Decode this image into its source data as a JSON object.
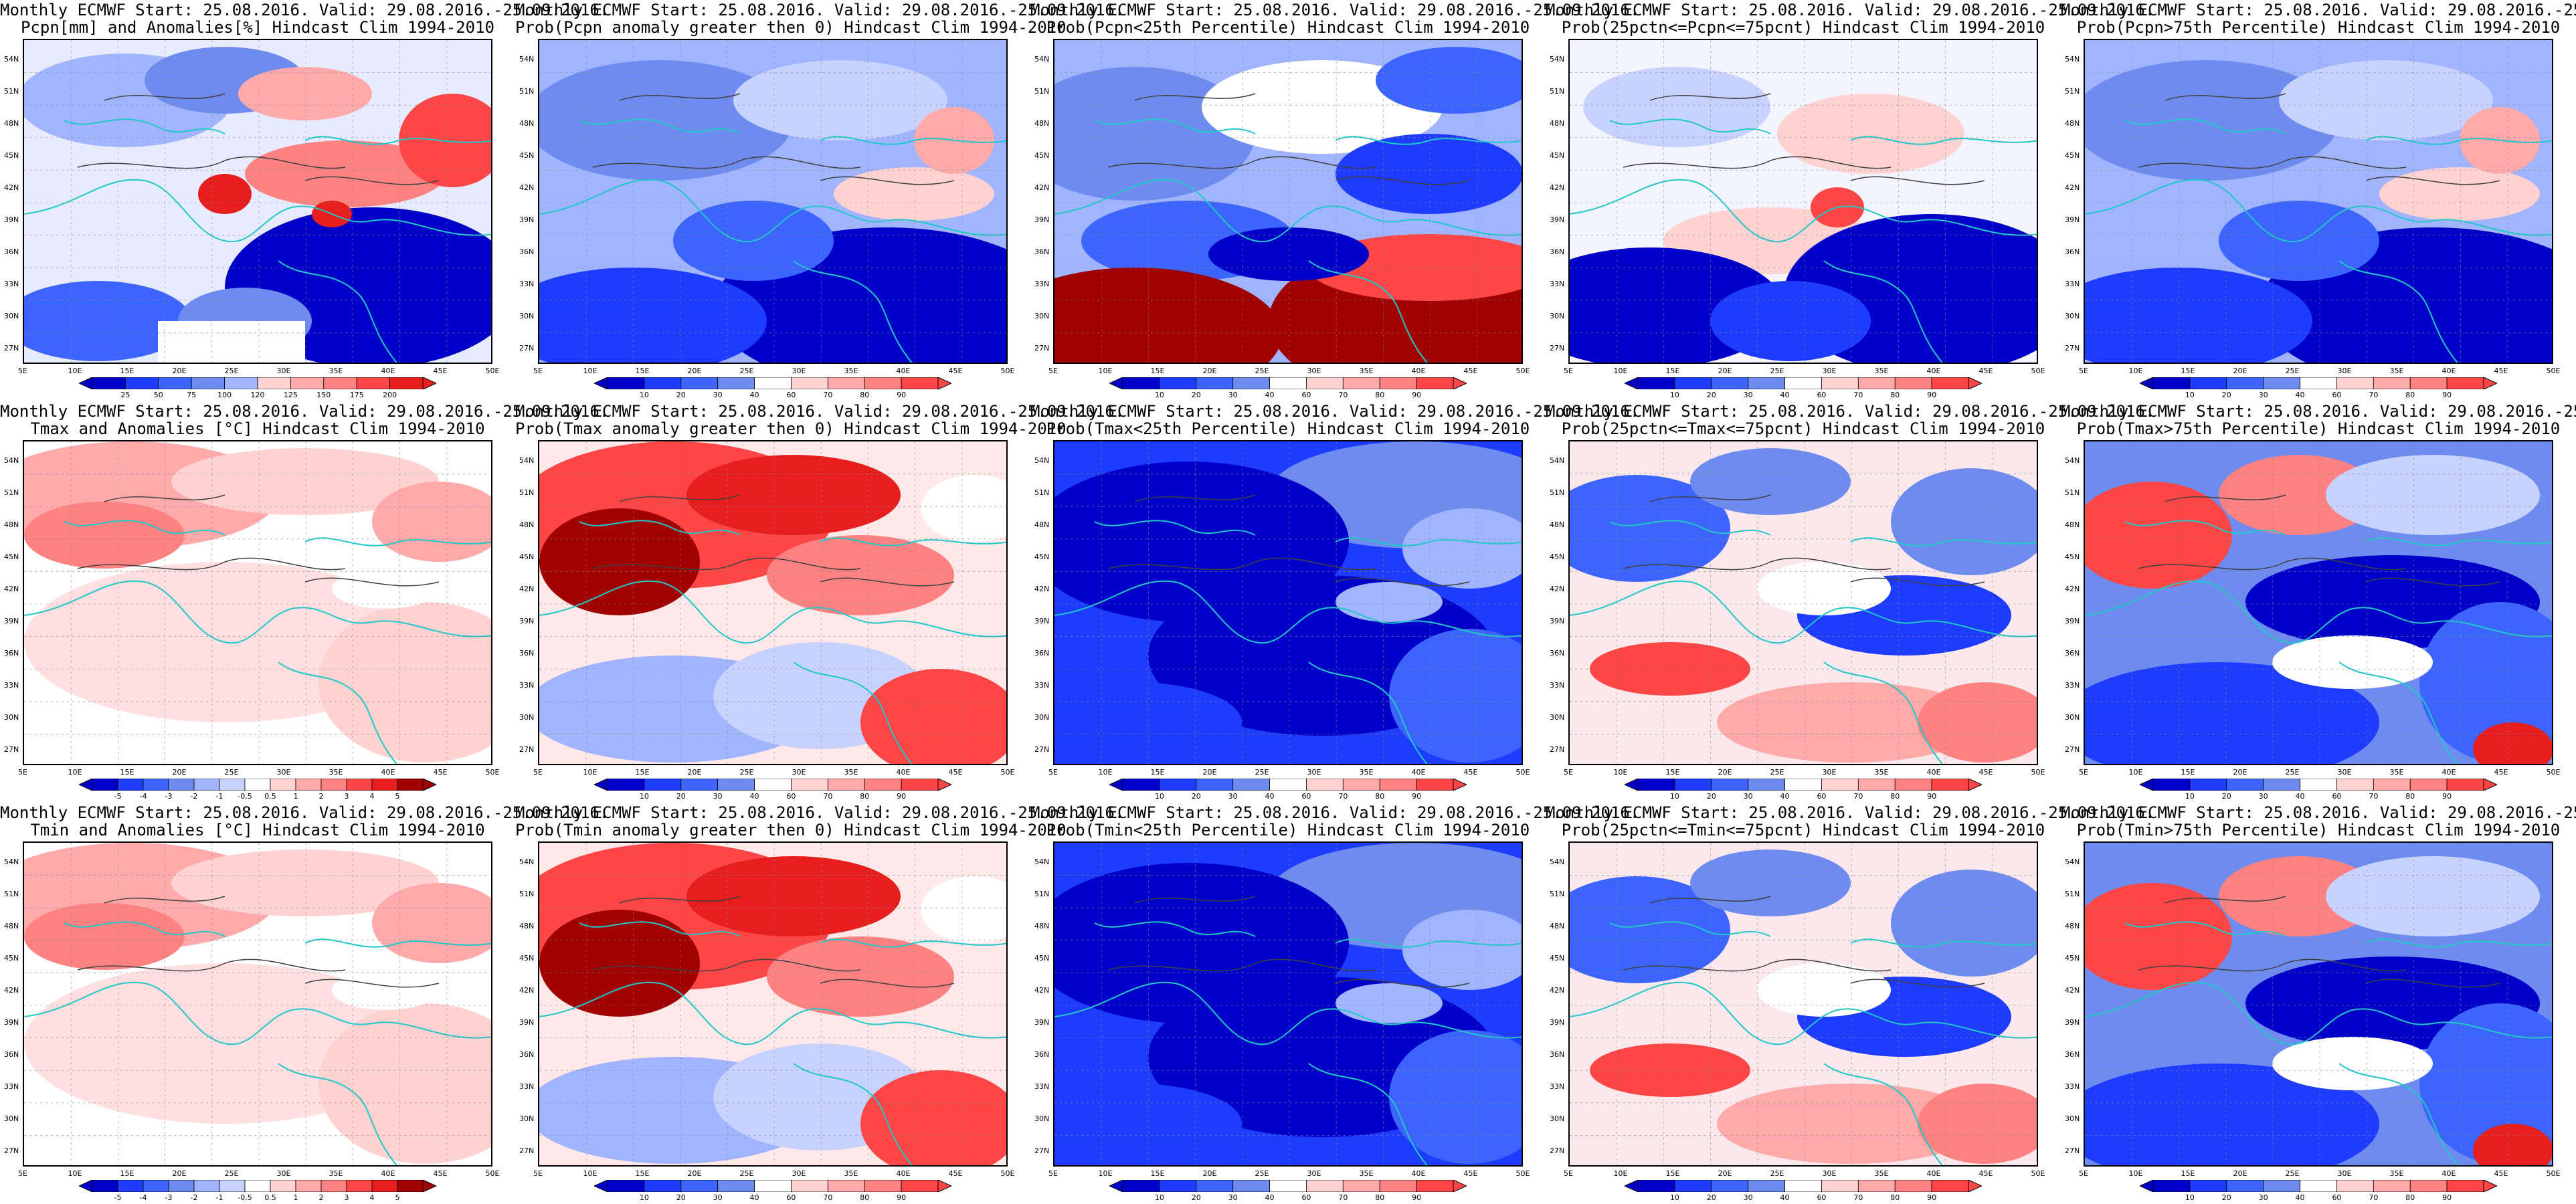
{
  "header_line": "Monthly ECMWF Start: 25.08.2016. Valid: 29.08.2016.-25.09.2016.",
  "lat_labels": [
    "54N",
    "51N",
    "48N",
    "45N",
    "42N",
    "39N",
    "36N",
    "33N",
    "30N",
    "27N"
  ],
  "lon_labels": [
    "5E",
    "10E",
    "15E",
    "20E",
    "25E",
    "30E",
    "35E",
    "40E",
    "45E",
    "50E"
  ],
  "colors": {
    "coast": "#20c8c8",
    "contour": "#404040",
    "blue_scale": [
      "#0000c8",
      "#1e3cff",
      "#3c64ff",
      "#6e8cf0",
      "#a0b4ff",
      "#c8d2ff"
    ],
    "red_scale": [
      "#ffd2d2",
      "#ffaaaa",
      "#ff8282",
      "#ff4646",
      "#e61e1e",
      "#a00000"
    ]
  },
  "panels": [
    {
      "title": "Pcpn[mm] and Anomalies[%] Hindcast Clim 1994-2010",
      "fill": "anom_mixed",
      "ticks": [
        "25",
        "50",
        "75",
        "100",
        "120",
        "125",
        "150",
        "175",
        "200"
      ]
    },
    {
      "title": "Prob(Pcpn anomaly greater then 0) Hindcast Clim 1994-2010",
      "fill": "blue_heavy",
      "ticks": [
        "10",
        "20",
        "30",
        "40",
        "60",
        "70",
        "80",
        "90"
      ]
    },
    {
      "title": "Prob(Pcpn<25th Percentile) Hindcast Clim 1994-2010",
      "fill": "pcpn_low",
      "ticks": [
        "10",
        "20",
        "30",
        "40",
        "60",
        "70",
        "80",
        "90"
      ]
    },
    {
      "title": "Prob(25pctn<=Pcpn<=75pcnt) Hindcast Clim 1994-2010",
      "fill": "blue_south",
      "ticks": [
        "10",
        "20",
        "30",
        "40",
        "60",
        "70",
        "80",
        "90"
      ]
    },
    {
      "title": "Prob(Pcpn>75th Percentile) Hindcast Clim 1994-2010",
      "fill": "blue_heavy",
      "ticks": [
        "10",
        "20",
        "30",
        "40",
        "60",
        "70",
        "80",
        "90"
      ]
    },
    {
      "title": "Tmax and Anomalies [°C] Hindcast Clim 1994-2010",
      "fill": "warm_light",
      "ticks": [
        "-5",
        "-4",
        "-3",
        "-2",
        "-1",
        "-0.5",
        "0.5",
        "1",
        "2",
        "3",
        "4",
        "5"
      ]
    },
    {
      "title": "Prob(Tmax anomaly greater then 0) Hindcast Clim 1994-2010",
      "fill": "warm_north",
      "ticks": [
        "10",
        "20",
        "30",
        "40",
        "60",
        "70",
        "80",
        "90"
      ]
    },
    {
      "title": "Prob(Tmax<25th Percentile) Hindcast Clim 1994-2010",
      "fill": "cold_all",
      "ticks": [
        "10",
        "20",
        "30",
        "40",
        "60",
        "70",
        "80",
        "90"
      ]
    },
    {
      "title": "Prob(25pctn<=Tmax<=75pcnt) Hindcast Clim 1994-2010",
      "fill": "mixed_mid",
      "ticks": [
        "10",
        "20",
        "30",
        "40",
        "60",
        "70",
        "80",
        "90"
      ]
    },
    {
      "title": "Prob(Tmax>75th Percentile) Hindcast Clim 1994-2010",
      "fill": "mixed_hot",
      "ticks": [
        "10",
        "20",
        "30",
        "40",
        "60",
        "70",
        "80",
        "90"
      ]
    },
    {
      "title": "Tmin and Anomalies [°C] Hindcast Clim 1994-2010",
      "fill": "warm_light",
      "ticks": [
        "-5",
        "-4",
        "-3",
        "-2",
        "-1",
        "-0.5",
        "0.5",
        "1",
        "2",
        "3",
        "4",
        "5"
      ]
    },
    {
      "title": "Prob(Tmin anomaly greater then 0) Hindcast Clim 1994-2010",
      "fill": "warm_north",
      "ticks": [
        "10",
        "20",
        "30",
        "40",
        "60",
        "70",
        "80",
        "90"
      ]
    },
    {
      "title": "Prob(Tmin<25th Percentile) Hindcast Clim 1994-2010",
      "fill": "cold_all",
      "ticks": [
        "10",
        "20",
        "30",
        "40",
        "60",
        "70",
        "80",
        "90"
      ]
    },
    {
      "title": "Prob(25pctn<=Tmin<=75pcnt) Hindcast Clim 1994-2010",
      "fill": "mixed_mid",
      "ticks": [
        "10",
        "20",
        "30",
        "40",
        "60",
        "70",
        "80",
        "90"
      ]
    },
    {
      "title": "Prob(Tmin>75th Percentile) Hindcast Clim 1994-2010",
      "fill": "mixed_hot",
      "ticks": [
        "10",
        "20",
        "30",
        "40",
        "60",
        "70",
        "80",
        "90"
      ]
    }
  ]
}
